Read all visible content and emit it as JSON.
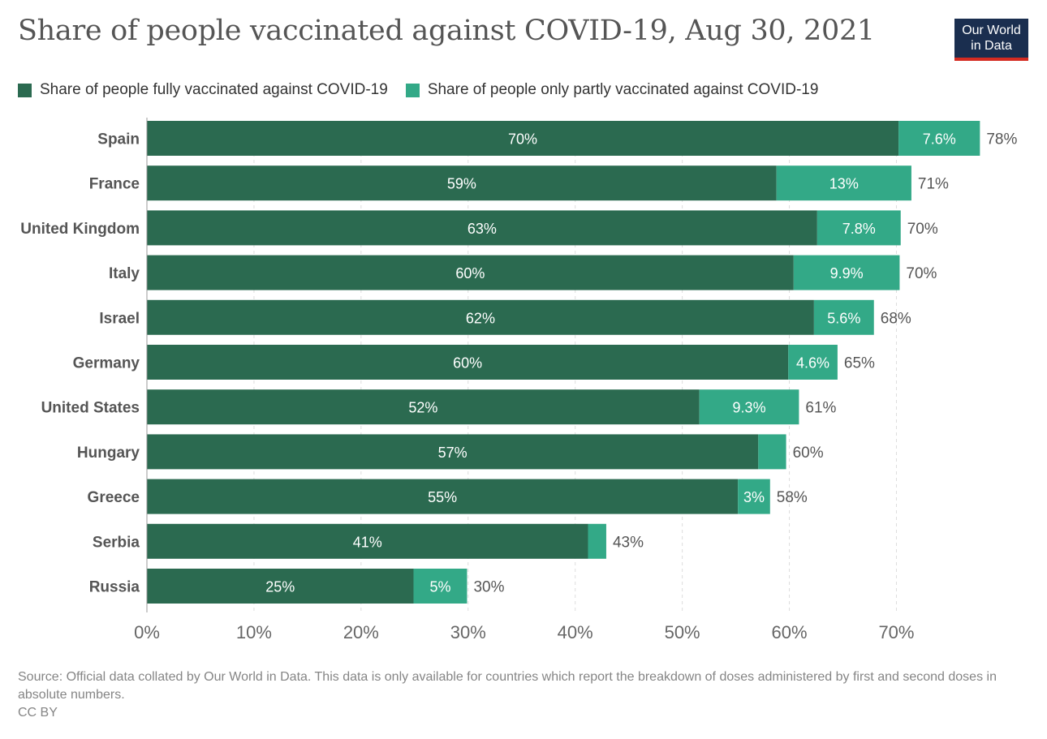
{
  "title": "Share of people vaccinated against COVID-19, Aug 30, 2021",
  "logo": {
    "line1": "Our World",
    "line2": "in Data"
  },
  "legend": [
    {
      "label": "Share of people fully vaccinated against COVID-19",
      "color": "#2b6a50"
    },
    {
      "label": "Share of people only partly vaccinated against COVID-19",
      "color": "#33a987"
    }
  ],
  "chart_data": {
    "type": "bar",
    "orientation": "horizontal",
    "stacked": true,
    "categories": [
      "Spain",
      "France",
      "United Kingdom",
      "Italy",
      "Israel",
      "Germany",
      "United States",
      "Hungary",
      "Greece",
      "Serbia",
      "Russia"
    ],
    "series": [
      {
        "name": "Share of people fully vaccinated against COVID-19",
        "color": "#2b6a50",
        "values": [
          70.2,
          58.8,
          62.6,
          60.4,
          62.3,
          59.9,
          51.6,
          57.1,
          55.2,
          41.2,
          24.9
        ],
        "labels": [
          "70%",
          "59%",
          "63%",
          "60%",
          "62%",
          "60%",
          "52%",
          "57%",
          "55%",
          "41%",
          "25%"
        ]
      },
      {
        "name": "Share of people only partly vaccinated against COVID-19",
        "color": "#33a987",
        "values": [
          7.6,
          12.6,
          7.8,
          9.9,
          5.6,
          4.6,
          9.3,
          2.6,
          3.0,
          1.7,
          5.0
        ],
        "labels": [
          "7.6%",
          "13%",
          "7.8%",
          "9.9%",
          "5.6%",
          "4.6%",
          "9.3%",
          "",
          "3%",
          "",
          "5%"
        ]
      }
    ],
    "totals": [
      "78%",
      "71%",
      "70%",
      "70%",
      "68%",
      "65%",
      "61%",
      "60%",
      "58%",
      "43%",
      "30%"
    ],
    "xlim": [
      0,
      78
    ],
    "xticks": [
      0,
      10,
      20,
      30,
      40,
      50,
      60,
      70
    ],
    "xtick_labels": [
      "0%",
      "10%",
      "20%",
      "30%",
      "40%",
      "50%",
      "60%",
      "70%"
    ],
    "grid": true
  },
  "footer": {
    "source": "Source: Official data collated by Our World in Data. This data is only available for countries which report the breakdown of doses administered by first and second doses in absolute numbers.",
    "license": "CC BY"
  }
}
